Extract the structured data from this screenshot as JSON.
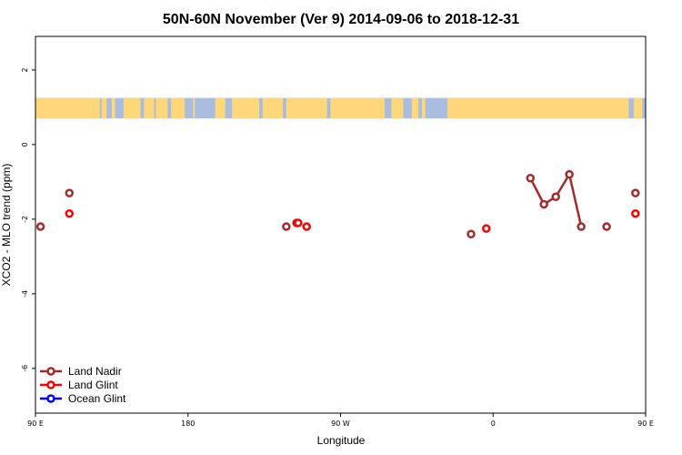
{
  "chart_data": {
    "type": "scatter",
    "title": "50N-60N November (Ver 9)   2014-09-06 to 2018-12-31",
    "xlabel": "Longitude",
    "ylabel": "XCO2 - MLO trend (ppm)",
    "xlim": [
      90,
      450
    ],
    "ylim": [
      -7.2,
      2.9
    ],
    "x_ticks": [
      {
        "value": 90,
        "label": "90 E"
      },
      {
        "value": 180,
        "label": "180"
      },
      {
        "value": 270,
        "label": "90 W"
      },
      {
        "value": 360,
        "label": "0"
      },
      {
        "value": 450,
        "label": "90 E"
      },
      {
        "value": 540,
        "label": "180"
      }
    ],
    "y_ticks": [
      {
        "value": 2,
        "label": "2"
      },
      {
        "value": 0,
        "label": "0"
      },
      {
        "value": -2,
        "label": "-2"
      },
      {
        "value": -4,
        "label": "-4"
      },
      {
        "value": -6,
        "label": "-6"
      }
    ],
    "map_band": {
      "y_top": 1.25,
      "y_bottom": 0.7,
      "ocean_color": "#a8bde0",
      "land_color": "#fdd77a"
    },
    "legend_position": "bottom-left",
    "series": [
      {
        "name": "Land Nadir",
        "color": "#a52a2a",
        "segments": [
          [
            {
              "x": 93,
              "y": -2.2
            }
          ],
          [
            {
              "x": 110,
              "y": -1.3
            }
          ],
          [
            {
              "x": 238,
              "y": -2.2
            }
          ],
          [
            {
              "x": 244,
              "y": -2.1
            }
          ],
          [
            {
              "x": 347,
              "y": -2.4
            }
          ],
          [
            {
              "x": 382,
              "y": -0.9
            },
            {
              "x": 390,
              "y": -1.6
            },
            {
              "x": 397,
              "y": -1.4
            },
            {
              "x": 405,
              "y": -0.8
            },
            {
              "x": 412,
              "y": -2.2
            }
          ],
          [
            {
              "x": 427,
              "y": -2.2
            }
          ],
          [
            {
              "x": 444,
              "y": -1.3
            }
          ]
        ]
      },
      {
        "name": "Land Glint",
        "color": "#ff0000",
        "segments": [
          [
            {
              "x": 110,
              "y": -1.85
            }
          ],
          [
            {
              "x": 245,
              "y": -2.1
            }
          ],
          [
            {
              "x": 250,
              "y": -2.2
            }
          ],
          [
            {
              "x": 356,
              "y": -2.25
            }
          ],
          [
            {
              "x": 444,
              "y": -1.85
            }
          ]
        ]
      },
      {
        "name": "Ocean Glint",
        "color": "#0000ff",
        "segments": []
      }
    ]
  }
}
